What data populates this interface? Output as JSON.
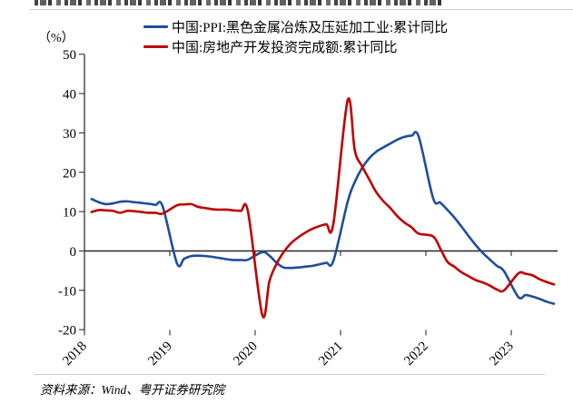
{
  "footer": {
    "source_text": "资料来源：Wind、粤开证券研究院"
  },
  "chart_data": {
    "type": "line",
    "unit_label": "（%）",
    "legend_position": "top",
    "grid": false,
    "ylim": [
      -20,
      50
    ],
    "y_ticks": [
      50,
      40,
      30,
      20,
      10,
      0,
      -10,
      -20
    ],
    "x_tick_labels": [
      "2018",
      "2019",
      "2020",
      "2021",
      "2022",
      "2023"
    ],
    "x": [
      "2018-02",
      "2018-03",
      "2018-04",
      "2018-05",
      "2018-06",
      "2018-07",
      "2018-08",
      "2018-09",
      "2018-10",
      "2018-11",
      "2018-12",
      "2019-02",
      "2019-03",
      "2019-04",
      "2019-05",
      "2019-06",
      "2019-07",
      "2019-08",
      "2019-09",
      "2019-10",
      "2019-11",
      "2019-12",
      "2020-02",
      "2020-03",
      "2020-04",
      "2020-05",
      "2020-06",
      "2020-07",
      "2020-08",
      "2020-09",
      "2020-10",
      "2020-11",
      "2020-12",
      "2021-02",
      "2021-03",
      "2021-04",
      "2021-05",
      "2021-06",
      "2021-07",
      "2021-08",
      "2021-09",
      "2021-10",
      "2021-11",
      "2021-12",
      "2022-02",
      "2022-03",
      "2022-04",
      "2022-05",
      "2022-06",
      "2022-07",
      "2022-08",
      "2022-09",
      "2022-10",
      "2022-11",
      "2022-12",
      "2023-02",
      "2023-03",
      "2023-04",
      "2023-05",
      "2023-06",
      "2023-07"
    ],
    "series": [
      {
        "name": "中国:PPI:黑色金属冶炼及压延加工业:累计同比",
        "color": "#1F4E9C",
        "values": [
          13.2,
          12.4,
          11.9,
          12.1,
          12.5,
          12.6,
          12.4,
          12.2,
          12.0,
          11.7,
          11.3,
          -3.1,
          -2.0,
          -1.3,
          -1.2,
          -1.3,
          -1.5,
          -1.8,
          -2.1,
          -2.3,
          -2.3,
          -2.2,
          -0.3,
          -1.2,
          -3.0,
          -4.2,
          -4.3,
          -4.2,
          -4.0,
          -3.8,
          -3.4,
          -3.0,
          -2.5,
          12.5,
          17.5,
          21.0,
          23.5,
          25.2,
          26.3,
          27.3,
          28.3,
          29.0,
          29.3,
          29.0,
          13.5,
          12.3,
          10.5,
          8.5,
          6.2,
          3.8,
          1.5,
          -0.5,
          -2.2,
          -3.8,
          -5.2,
          -11.7,
          -11.2,
          -11.6,
          -12.2,
          -12.9,
          -13.4
        ]
      },
      {
        "name": "中国:房地产开发投资完成额:累计同比",
        "color": "#BF0000",
        "values": [
          9.9,
          10.4,
          10.3,
          10.2,
          9.7,
          10.2,
          10.1,
          9.9,
          9.7,
          9.7,
          9.5,
          11.6,
          11.8,
          11.9,
          11.2,
          10.9,
          10.6,
          10.5,
          10.5,
          10.3,
          10.2,
          9.9,
          -16.3,
          -7.7,
          -3.3,
          -0.3,
          1.9,
          3.4,
          4.6,
          5.6,
          6.3,
          6.8,
          7.0,
          38.3,
          25.6,
          21.6,
          18.3,
          15.0,
          12.7,
          10.9,
          8.8,
          7.2,
          6.0,
          4.4,
          3.7,
          0.7,
          -2.7,
          -4.0,
          -5.4,
          -6.4,
          -7.4,
          -8.0,
          -8.8,
          -9.8,
          -10.0,
          -5.7,
          -5.8,
          -6.2,
          -7.2,
          -7.9,
          -8.5
        ]
      }
    ]
  }
}
